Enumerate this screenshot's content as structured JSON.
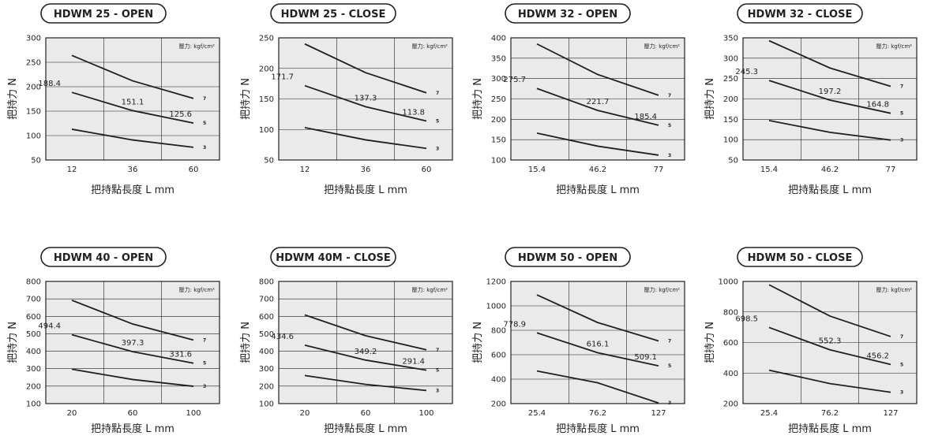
{
  "shared": {
    "xlabel": "把持點長度 L mm",
    "ylabel": "把持力 N",
    "pressure_label": "壓力: kgf/cm²"
  },
  "chart_data": [
    {
      "type": "line",
      "title": "HDWM 25 - OPEN",
      "categories": [
        "12",
        "36",
        "60"
      ],
      "ylim": [
        50,
        300
      ],
      "yticks": [
        50,
        100,
        150,
        200,
        250,
        300
      ],
      "xlabel": "把持點長度 L mm",
      "ylabel": "把持力 N",
      "series": [
        {
          "name": "7",
          "values": [
            264,
            212,
            176
          ]
        },
        {
          "name": "5",
          "values": [
            188.4,
            151.1,
            125.6
          ]
        },
        {
          "name": "3",
          "values": [
            113,
            91,
            76
          ]
        }
      ],
      "annotations": [
        "188.4",
        "151.1",
        "125.6"
      ],
      "legend": "top-right",
      "grid": true
    },
    {
      "type": "line",
      "title": "HDWM 25 - CLOSE",
      "categories": [
        "12",
        "36",
        "60"
      ],
      "ylim": [
        50,
        250
      ],
      "yticks": [
        50,
        100,
        150,
        200,
        250
      ],
      "xlabel": "把持點長度 L mm",
      "ylabel": "把持力 N",
      "series": [
        {
          "name": "7",
          "values": [
            240,
            193,
            160
          ]
        },
        {
          "name": "5",
          "values": [
            171.7,
            137.3,
            113.8
          ]
        },
        {
          "name": "3",
          "values": [
            103,
            83,
            69
          ]
        }
      ],
      "annotations": [
        "171.7",
        "137.3",
        "113.8"
      ],
      "legend": "top-right",
      "grid": true
    },
    {
      "type": "line",
      "title": "HDWM 32 - OPEN",
      "categories": [
        "15.4",
        "46.2",
        "77"
      ],
      "ylim": [
        100,
        400
      ],
      "yticks": [
        100,
        150,
        200,
        250,
        300,
        350,
        400
      ],
      "xlabel": "把持點長度 L mm",
      "ylabel": "把持力 N",
      "series": [
        {
          "name": "7",
          "values": [
            385,
            310,
            259
          ]
        },
        {
          "name": "5",
          "values": [
            275.7,
            221.7,
            185.4
          ]
        },
        {
          "name": "3",
          "values": [
            166,
            134,
            112
          ]
        }
      ],
      "annotations": [
        "275.7",
        "221.7",
        "185.4"
      ],
      "legend": "top-right",
      "grid": true
    },
    {
      "type": "line",
      "title": "HDWM 32 - CLOSE",
      "categories": [
        "15.4",
        "46.2",
        "77"
      ],
      "ylim": [
        50,
        350
      ],
      "yticks": [
        50,
        100,
        150,
        200,
        250,
        300,
        350
      ],
      "xlabel": "把持點長度 L mm",
      "ylabel": "把持力 N",
      "series": [
        {
          "name": "7",
          "values": [
            343,
            276,
            231
          ]
        },
        {
          "name": "5",
          "values": [
            245.3,
            197.2,
            164.8
          ]
        },
        {
          "name": "3",
          "values": [
            147,
            118,
            99
          ]
        }
      ],
      "annotations": [
        "245.3",
        "197.2",
        "164.8"
      ],
      "legend": "top-right",
      "grid": true
    },
    {
      "type": "line",
      "title": "HDWM 40 - OPEN",
      "categories": [
        "20",
        "60",
        "100"
      ],
      "ylim": [
        100,
        800
      ],
      "yticks": [
        100,
        200,
        300,
        400,
        500,
        600,
        700,
        800
      ],
      "xlabel": "把持點長度 L mm",
      "ylabel": "把持力 N",
      "series": [
        {
          "name": "7",
          "values": [
            692,
            556,
            464
          ]
        },
        {
          "name": "5",
          "values": [
            494.4,
            397.3,
            331.6
          ]
        },
        {
          "name": "3",
          "values": [
            297,
            238,
            199
          ]
        }
      ],
      "annotations": [
        "494.4",
        "397.3",
        "331.6"
      ],
      "legend": "top-right",
      "grid": true
    },
    {
      "type": "line",
      "title": "HDWM 40M - CLOSE",
      "categories": [
        "20",
        "60",
        "100"
      ],
      "ylim": [
        100,
        800
      ],
      "yticks": [
        100,
        200,
        300,
        400,
        500,
        600,
        700,
        800
      ],
      "xlabel": "把持點長度 L mm",
      "ylabel": "把持力 N",
      "series": [
        {
          "name": "7",
          "values": [
            608,
            489,
            408
          ]
        },
        {
          "name": "5",
          "values": [
            434.6,
            349.2,
            291.4
          ]
        },
        {
          "name": "3",
          "values": [
            261,
            210,
            175
          ]
        }
      ],
      "annotations": [
        "434.6",
        "349.2",
        "291.4"
      ],
      "legend": "top-right",
      "grid": true
    },
    {
      "type": "line",
      "title": "HDWM 50 - OPEN",
      "categories": [
        "25.4",
        "76.2",
        "127"
      ],
      "ylim": [
        200,
        1200
      ],
      "yticks": [
        200,
        400,
        600,
        800,
        1000,
        1200
      ],
      "xlabel": "把持點長度 L mm",
      "ylabel": "把持力 N",
      "series": [
        {
          "name": "7",
          "values": [
            1090,
            863,
            713
          ]
        },
        {
          "name": "5",
          "values": [
            778.9,
            616.1,
            509.1
          ]
        },
        {
          "name": "3",
          "values": [
            467,
            370,
            205
          ]
        }
      ],
      "annotations": [
        "778.9",
        "616.1",
        "509.1"
      ],
      "legend": "top-right",
      "grid": true
    },
    {
      "type": "line",
      "title": "HDWM 50 - CLOSE",
      "categories": [
        "25.4",
        "76.2",
        "127"
      ],
      "ylim": [
        200,
        1000
      ],
      "yticks": [
        200,
        400,
        600,
        800,
        1000
      ],
      "xlabel": "把持點長度 L mm",
      "ylabel": "把持力 N",
      "series": [
        {
          "name": "7",
          "values": [
            978,
            773,
            639
          ]
        },
        {
          "name": "5",
          "values": [
            698.5,
            552.3,
            456.2
          ]
        },
        {
          "name": "3",
          "values": [
            419,
            331,
            274
          ]
        }
      ],
      "annotations": [
        "698.5",
        "552.3",
        "456.2"
      ],
      "legend": "top-right",
      "grid": true
    }
  ]
}
